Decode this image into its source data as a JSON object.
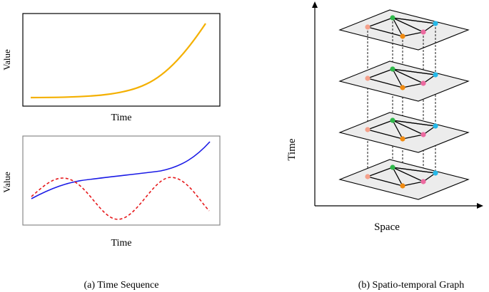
{
  "left": {
    "top_chart": {
      "x_label": "Time",
      "y_label": "Value",
      "line_color": "#f4b000"
    },
    "bottom_chart": {
      "x_label": "Time",
      "y_label": "Value",
      "solid_color": "#1a1ae6",
      "dashed_color": "#e6191c"
    },
    "caption": "(a) Time Sequence"
  },
  "right": {
    "x_label": "Space",
    "y_label": "Time",
    "caption": "(b) Spatio-temporal Graph",
    "layer_count": 4,
    "plane_color": "#ececec",
    "node_colors": [
      "#f5a08a",
      "#2fb84a",
      "#f08a10",
      "#ec6aa0",
      "#25b8e8"
    ]
  }
}
